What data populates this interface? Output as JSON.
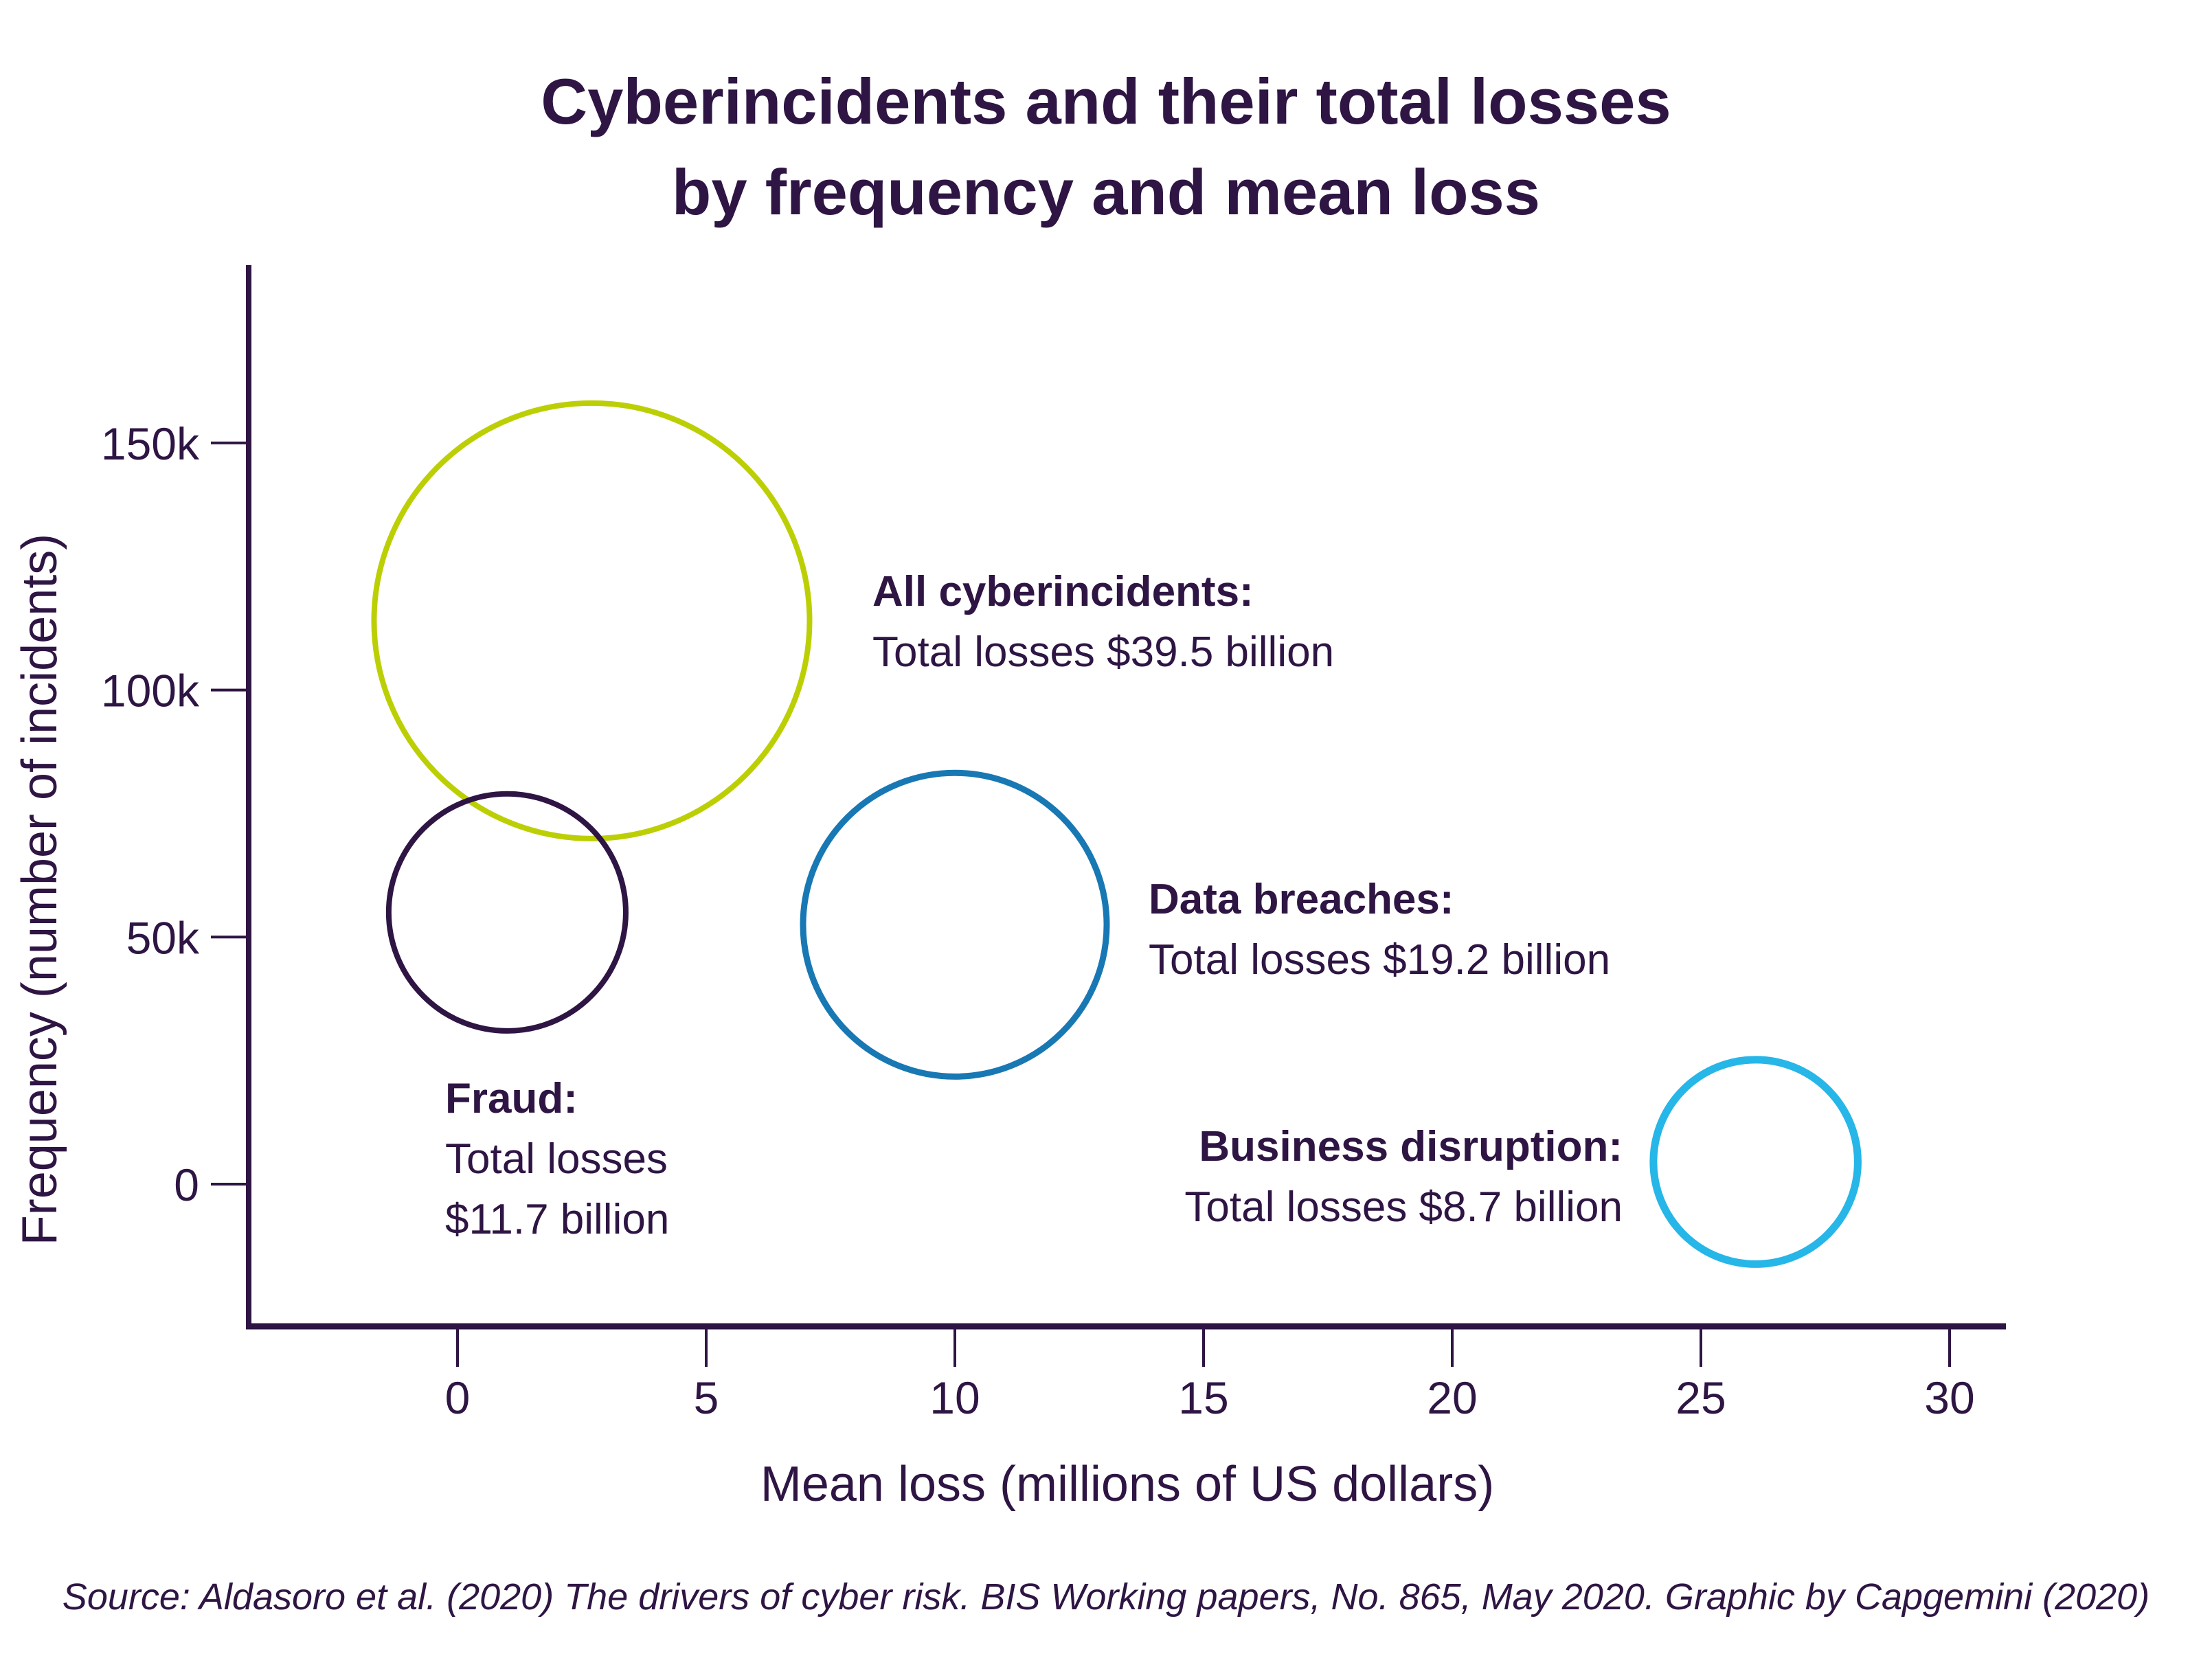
{
  "title": {
    "line1": "Cyberincidents and their total losses",
    "line2": "by frequency and mean loss"
  },
  "source": "Source: Aldasoro et al. (2020) The drivers of cyber risk. BIS Working papers, No. 865, May 2020. Graphic by Capgemini (2020)",
  "colors": {
    "text": "#2e1543",
    "axis": "#2e1543",
    "all_cyberincidents": "#bccf04",
    "fraud": "#2e1543",
    "data_breaches": "#1878b4",
    "business_disruption": "#26b6e8"
  },
  "chart_data": {
    "type": "scatter",
    "subtype": "bubble",
    "title": "Cyberincidents and their total losses by frequency and mean loss",
    "xlabel": "Mean loss (millions of US dollars)",
    "ylabel": "Frequency (number of incidents)",
    "grid": false,
    "legend": "none",
    "xlim": [
      -4.2,
      31.1
    ],
    "ylim": [
      -29000,
      186500
    ],
    "x_ticks": [
      {
        "label": "0",
        "value": 0
      },
      {
        "label": "5",
        "value": 5
      },
      {
        "label": "10",
        "value": 10
      },
      {
        "label": "15",
        "value": 15
      },
      {
        "label": "20",
        "value": 20
      },
      {
        "label": "25",
        "value": 25
      },
      {
        "label": "30",
        "value": 30
      }
    ],
    "y_ticks": [
      {
        "label": "0",
        "value": 0
      },
      {
        "label": "50k",
        "value": 50000
      },
      {
        "label": "100k",
        "value": 100000
      },
      {
        "label": "150k",
        "value": 150000
      }
    ],
    "bubbles": [
      {
        "name": "All cyberincidents",
        "mean_loss_millions_usd": 2.7,
        "frequency_incidents": 114000,
        "total_losses_billions_usd": 39.5,
        "color": "#bccf04",
        "label_lines": [
          "All cyberincidents:",
          "Total losses $39.5 billion"
        ]
      },
      {
        "name": "Fraud",
        "mean_loss_millions_usd": 1.0,
        "frequency_incidents": 55000,
        "total_losses_billions_usd": 11.7,
        "color": "#2e1543",
        "label_lines": [
          "Fraud:",
          "Total losses",
          "$11.7 billion"
        ]
      },
      {
        "name": "Data breaches",
        "mean_loss_millions_usd": 10.0,
        "frequency_incidents": 52500,
        "total_losses_billions_usd": 19.2,
        "color": "#1878b4",
        "label_lines": [
          "Data breaches:",
          "Total losses $19.2 billion"
        ]
      },
      {
        "name": "Business disruption",
        "mean_loss_millions_usd": 26.1,
        "frequency_incidents": 4500,
        "total_losses_billions_usd": 8.7,
        "color": "#26b6e8",
        "label_lines": [
          "Business disruption:",
          "Total losses $8.7 billion"
        ]
      }
    ]
  }
}
